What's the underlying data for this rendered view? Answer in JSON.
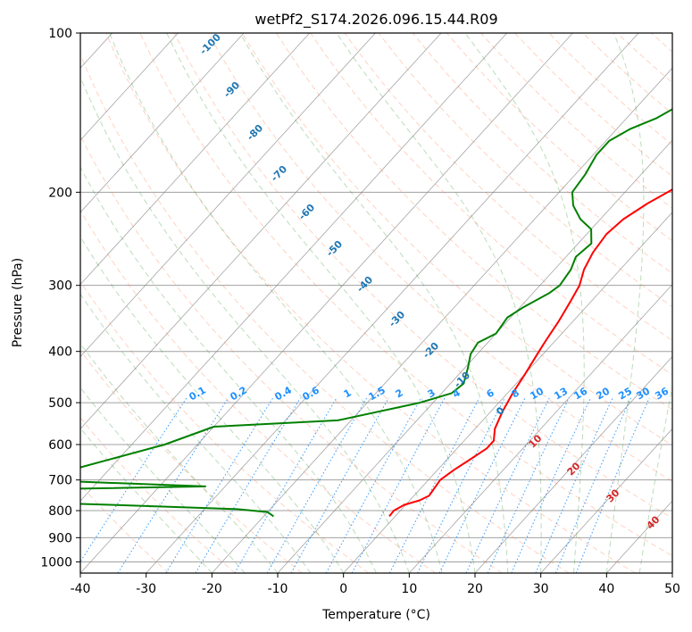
{
  "chart_data": {
    "type": "line",
    "title": "wetPf2_S174.2026.096.15.44.R09",
    "xlabel": "Temperature (°C)",
    "ylabel": "Pressure (hPa)",
    "xlim": [
      -40,
      50
    ],
    "ylim": [
      1050,
      100
    ],
    "y_scale": "log",
    "grid": true,
    "x_ticks": [
      -40,
      -30,
      -20,
      -10,
      0,
      10,
      20,
      30,
      40,
      50
    ],
    "y_ticks": [
      100,
      200,
      300,
      400,
      500,
      600,
      700,
      800,
      900,
      1000
    ],
    "skew_offset_per_decade": 73.3,
    "colors": {
      "temperature": "#ff0000",
      "dewpoint": "#008000",
      "isotherm": "#7f7f7f",
      "isobar": "#a0a0a0",
      "dry_adiabat": "#ff7f50",
      "moist_adiabat": "#228b22",
      "mixing_ratio": "#1e90ff",
      "dry_label": "#1f77b4",
      "wet_label": "#d62728"
    },
    "series": [
      {
        "name": "Temperature",
        "points": [
          [
            -0.9,
            820
          ],
          [
            -1.0,
            800
          ],
          [
            -0.2,
            780
          ],
          [
            1.5,
            765
          ],
          [
            2.3,
            750
          ],
          [
            2.0,
            720
          ],
          [
            1.8,
            700
          ],
          [
            2.5,
            670
          ],
          [
            3.5,
            640
          ],
          [
            4.5,
            610
          ],
          [
            4.5,
            590
          ],
          [
            3.0,
            560
          ],
          [
            1.8,
            520
          ],
          [
            0.8,
            480
          ],
          [
            0.0,
            440
          ],
          [
            -1.0,
            400
          ],
          [
            -1.5,
            380
          ],
          [
            -2.2,
            350
          ],
          [
            -3.2,
            320
          ],
          [
            -4.0,
            300
          ],
          [
            -5.5,
            280
          ],
          [
            -6.5,
            260
          ],
          [
            -7.0,
            240
          ],
          [
            -6.5,
            225
          ],
          [
            -5.0,
            210
          ],
          [
            -3.5,
            200
          ],
          [
            -2.0,
            190
          ],
          [
            -0.2,
            180
          ],
          [
            0.8,
            170
          ],
          [
            2.5,
            155
          ],
          [
            4.5,
            145
          ],
          [
            5.5,
            135
          ],
          [
            7.0,
            125
          ],
          [
            8.0,
            115
          ],
          [
            8.5,
            108
          ],
          [
            9.0,
            100
          ]
        ]
      },
      {
        "name": "Dewpoint",
        "points": [
          [
            -18.5,
            820
          ],
          [
            -20.0,
            805
          ],
          [
            -25.0,
            795
          ],
          [
            -45.0,
            780
          ],
          [
            -60.0,
            770
          ],
          [
            -60.0,
            730
          ],
          [
            -33.0,
            720
          ],
          [
            -60.0,
            700
          ],
          [
            -45.0,
            600
          ],
          [
            -40.0,
            555
          ],
          [
            -22.0,
            540
          ],
          [
            -12.0,
            500
          ],
          [
            -8.5,
            480
          ],
          [
            -8.0,
            460
          ],
          [
            -9.5,
            430
          ],
          [
            -11.0,
            405
          ],
          [
            -11.5,
            385
          ],
          [
            -10.0,
            370
          ],
          [
            -10.5,
            345
          ],
          [
            -9.5,
            330
          ],
          [
            -7.5,
            310
          ],
          [
            -7.0,
            300
          ],
          [
            -7.5,
            280
          ],
          [
            -8.5,
            265
          ],
          [
            -8.0,
            250
          ],
          [
            -10.0,
            235
          ],
          [
            -13.0,
            225
          ],
          [
            -16.0,
            212
          ],
          [
            -18.0,
            200
          ],
          [
            -18.5,
            185
          ],
          [
            -19.5,
            170
          ],
          [
            -19.5,
            160
          ],
          [
            -18.0,
            152
          ],
          [
            -15.5,
            145
          ],
          [
            -14.0,
            138
          ],
          [
            -12.5,
            130
          ],
          [
            -11.0,
            120
          ],
          [
            -9.0,
            110
          ],
          [
            -7.5,
            102
          ],
          [
            -7.0,
            100
          ]
        ]
      }
    ],
    "dry_adiabat_labels": [
      "-100",
      "-90",
      "-80",
      "-70",
      "-60",
      "-50",
      "-40",
      "-30",
      "-20",
      "-10",
      "0",
      "10",
      "20",
      "30",
      "40"
    ],
    "mixing_ratio_labels": [
      "0.1",
      "0.2",
      "0.4",
      "0.6",
      "1",
      "1.5",
      "2",
      "3",
      "4",
      "6",
      "8",
      "10",
      "13",
      "16",
      "20",
      "25",
      "30",
      "36"
    ]
  }
}
